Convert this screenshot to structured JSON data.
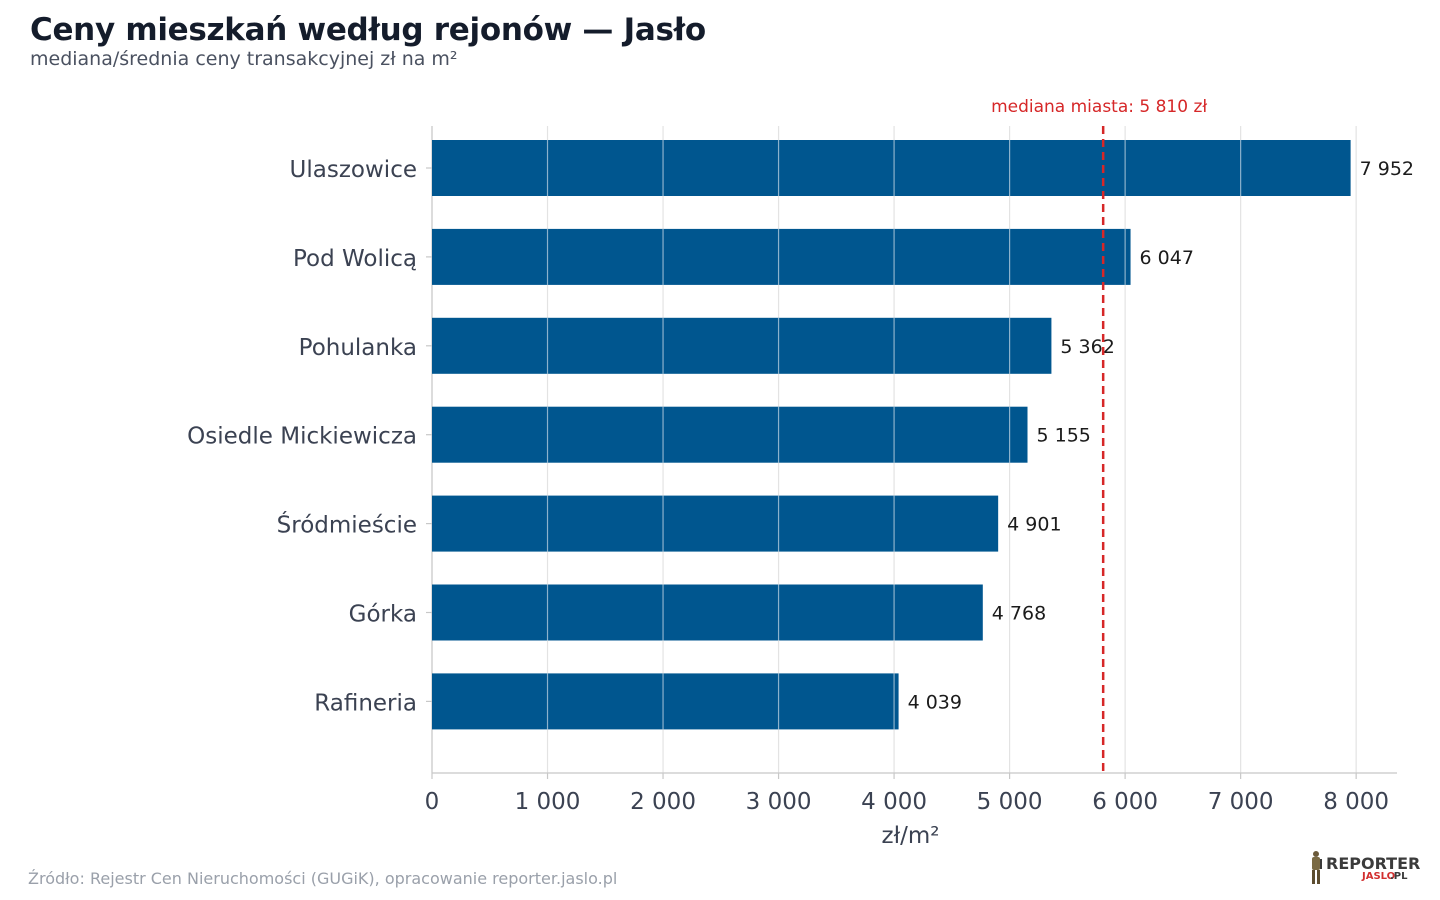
{
  "header": {
    "title": "Ceny mieszkań według rejonów — Jasło",
    "subtitle": "mediana/średnia ceny transakcyjnej zł na m²"
  },
  "footer": {
    "source": "Źródło: Rejestr Cen Nieruchomości (GUGiK), opracowanie reporter.jaslo.pl"
  },
  "logo": {
    "line1": "REPORTER",
    "line2": "JASLO",
    "line3": ".PL"
  },
  "colors": {
    "bar": "#00568f",
    "median_line": "#d62728",
    "grid": "#e3e3e3",
    "axis": "#c8c8c8",
    "label": "#3b4252"
  },
  "chart_data": {
    "type": "bar",
    "orientation": "horizontal",
    "categories": [
      "Ulaszowice",
      "Pod Wolicą",
      "Pohulanka",
      "Osiedle Mickiewicza",
      "Śródmieście",
      "Górka",
      "Rafineria"
    ],
    "values": [
      7952,
      6047,
      5362,
      5155,
      4901,
      4768,
      4039
    ],
    "value_labels": [
      "7 952",
      "6 047",
      "5 362",
      "5 155",
      "4 901",
      "4 768",
      "4 039"
    ],
    "xlabel": "zł/m²",
    "ylabel": "",
    "xlim": [
      0,
      8350
    ],
    "xticks": [
      0,
      1000,
      2000,
      3000,
      4000,
      5000,
      6000,
      7000,
      8000
    ],
    "xtick_labels": [
      "0",
      "1 000",
      "2 000",
      "3 000",
      "4 000",
      "5 000",
      "6 000",
      "7 000",
      "8 000"
    ],
    "grid": true,
    "reference_line": {
      "value": 5810,
      "label": "mediana miasta: 5 810 zł",
      "style": "dashed"
    }
  }
}
